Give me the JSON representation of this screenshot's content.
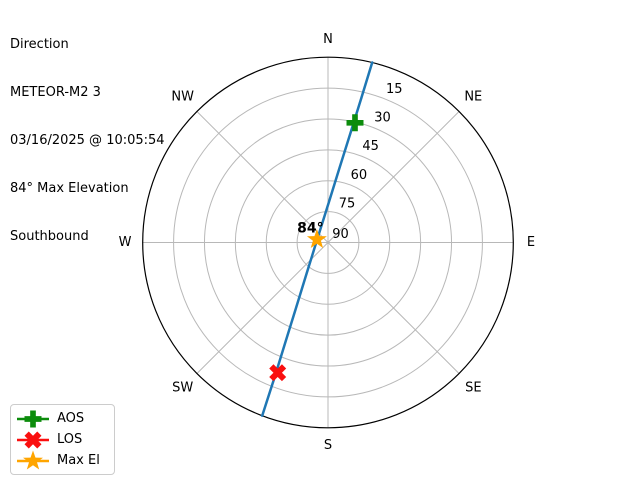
{
  "header": {
    "lines": [
      "Direction",
      "METEOR-M2 3",
      "03/16/2025 @ 10:05:54",
      "84° Max Elevation",
      "Southbound"
    ]
  },
  "chart_data": {
    "type": "polar_sky_track",
    "title": "Direction",
    "satellite": "METEOR-M2 3",
    "compass_labels": [
      "N",
      "NE",
      "E",
      "SE",
      "S",
      "SW",
      "W",
      "NW"
    ],
    "elevation_ticks": [
      15,
      30,
      45,
      60,
      75,
      90
    ],
    "elevation_range": [
      0,
      90
    ],
    "grid": true,
    "max_elevation_annotation": "84°",
    "colors": {
      "track": "#1f77b4",
      "grid": "#b8b8b8",
      "spine": "#000000",
      "aos": "#0c8c0c",
      "los": "#fa0f0f",
      "max_el": "#ffa500"
    },
    "track_points_az_el": [
      [
        13.8,
        0.0
      ],
      [
        13.0,
        17.7
      ],
      [
        11.6,
        35.5
      ],
      [
        8.8,
        53.2
      ],
      [
        1.0,
        70.7
      ],
      [
        294.7,
        84.5
      ],
      [
        214.8,
        72.0
      ],
      [
        206.0,
        54.6
      ],
      [
        203.1,
        36.9
      ],
      [
        201.6,
        19.1
      ],
      [
        200.8,
        0.0
      ]
    ],
    "markers": [
      {
        "id": "aos",
        "label": "AOS",
        "symbol": "plus_filled",
        "color": "#0c8c0c",
        "az": 12.7,
        "el": 30.4
      },
      {
        "id": "los",
        "label": "LOS",
        "symbol": "x_filled",
        "color": "#fa0f0f",
        "az": 201.1,
        "el": 22.2
      },
      {
        "id": "max_el",
        "label": "Max El",
        "symbol": "star",
        "color": "#ffa500",
        "az": 285.0,
        "el": 84.4
      }
    ]
  },
  "legend": {
    "items": [
      {
        "label": "AOS",
        "symbol": "plus_filled",
        "color": "#0c8c0c"
      },
      {
        "label": "LOS",
        "symbol": "x_filled",
        "color": "#fa0f0f"
      },
      {
        "label": "Max El",
        "symbol": "star",
        "color": "#ffa500"
      }
    ]
  }
}
